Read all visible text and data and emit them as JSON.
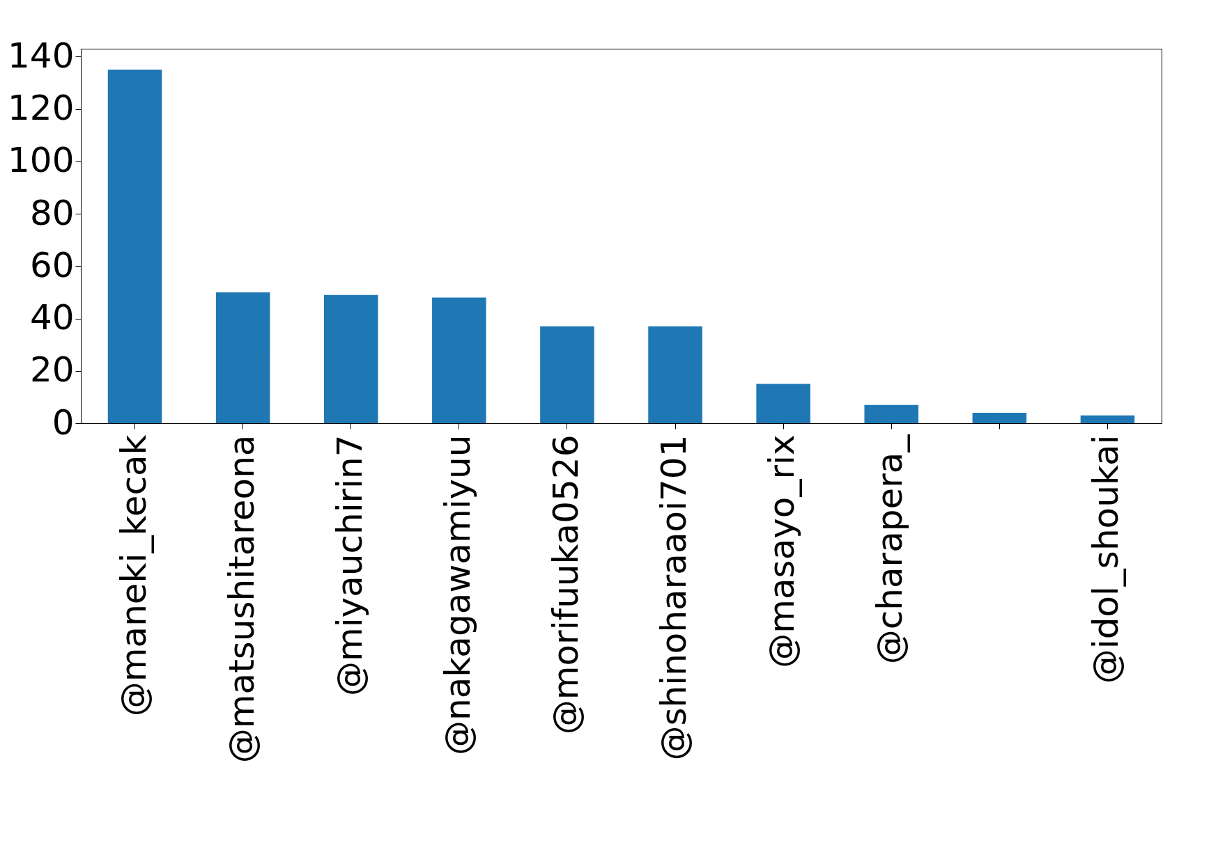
{
  "chart_data": {
    "type": "bar",
    "categories": [
      "@maneki_kecak",
      "@matsushitareona",
      "@miyauchirin7",
      "@nakagawamiyuu",
      "@morifuuka0526",
      "@shinoharaaoi701",
      "@masayo_rix",
      "@charapera_",
      null,
      "@idol_shoukai"
    ],
    "values": [
      135,
      50,
      49,
      48,
      37,
      37,
      15,
      7,
      4,
      3
    ],
    "color": "#1f77b4",
    "ylim": [
      0,
      143
    ],
    "yticks": [
      0,
      20,
      40,
      60,
      80,
      100,
      120,
      140
    ],
    "grid": false
  }
}
